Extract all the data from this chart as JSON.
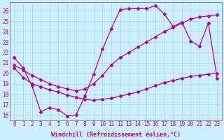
{
  "background_color": "#cceeff",
  "grid_color": "#aacccc",
  "line_color": "#aa00aa",
  "marker": "D",
  "markersize": 2,
  "linewidth": 0.9,
  "xlabel": "Windchill (Refroidissement éolien,°C)",
  "xlabel_fontsize": 6.0,
  "tick_fontsize": 5.5,
  "xlim": [
    -0.5,
    23.5
  ],
  "ylim": [
    15.5,
    26.8
  ],
  "yticks": [
    16,
    17,
    18,
    19,
    20,
    21,
    22,
    23,
    24,
    25,
    26
  ],
  "xticks": [
    0,
    1,
    2,
    3,
    4,
    5,
    6,
    7,
    8,
    9,
    10,
    11,
    12,
    13,
    14,
    15,
    16,
    17,
    18,
    19,
    20,
    21,
    22,
    23
  ],
  "series": [
    [
      21.5,
      20.5,
      18.8,
      16.3,
      16.7,
      16.5,
      15.9,
      16.0,
      17.8,
      19.9,
      22.3,
      24.3,
      26.1,
      26.2,
      26.2,
      26.2,
      26.5,
      25.7,
      24.5,
      24.9,
      23.1,
      22.6,
      24.8,
      19.5
    ],
    [
      20.8,
      20.3,
      19.8,
      19.4,
      19.0,
      18.7,
      18.5,
      18.3,
      18.5,
      19.0,
      19.8,
      20.8,
      21.5,
      22.0,
      22.5,
      23.0,
      23.5,
      24.0,
      24.4,
      24.8,
      25.2,
      25.4,
      25.5,
      25.6
    ],
    [
      20.5,
      19.6,
      19.0,
      18.7,
      18.4,
      18.2,
      17.9,
      17.7,
      17.5,
      17.4,
      17.5,
      17.6,
      17.8,
      18.0,
      18.2,
      18.5,
      18.8,
      19.1,
      19.3,
      19.5,
      19.7,
      19.8,
      19.9,
      20.0
    ]
  ]
}
